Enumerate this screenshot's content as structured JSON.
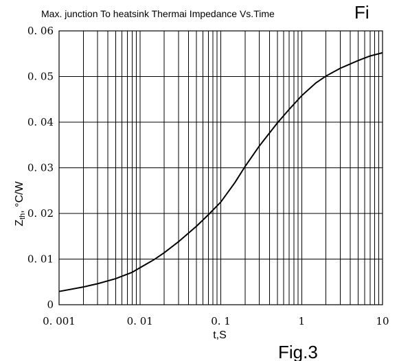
{
  "chart_data": {
    "type": "line",
    "title": "Max. junction To heatsink Thermai Impedance Vs.Time",
    "title_suffix": "Fi",
    "bottom_label": "Fig.3",
    "xlabel": "t,S",
    "ylabel_main": "Z",
    "ylabel_sub": "th",
    "ylabel_rest": ", °C/W",
    "x_scale": "log",
    "xlim": [
      0.001,
      10
    ],
    "ylim": [
      0,
      0.06
    ],
    "grid": true,
    "x_ticks": [
      {
        "value": 0.001,
        "label": "0. 001"
      },
      {
        "value": 0.01,
        "label": "0. 01"
      },
      {
        "value": 0.1,
        "label": "0. 1"
      },
      {
        "value": 1,
        "label": "1"
      },
      {
        "value": 10,
        "label": "10"
      }
    ],
    "y_ticks": [
      {
        "value": 0,
        "label": "0"
      },
      {
        "value": 0.01,
        "label": "0. 01"
      },
      {
        "value": 0.02,
        "label": "0. 02"
      },
      {
        "value": 0.03,
        "label": "0. 03"
      },
      {
        "value": 0.04,
        "label": "0. 04"
      },
      {
        "value": 0.05,
        "label": "0. 05"
      },
      {
        "value": 0.06,
        "label": "0. 06"
      }
    ],
    "series": [
      {
        "x": [
          0.001,
          0.002,
          0.003,
          0.005,
          0.008,
          0.01,
          0.015,
          0.02,
          0.03,
          0.05,
          0.07,
          0.1,
          0.15,
          0.2,
          0.3,
          0.5,
          0.7,
          1,
          1.5,
          2,
          3,
          5,
          7,
          10
        ],
        "y": [
          0.0029,
          0.0039,
          0.0046,
          0.0057,
          0.0071,
          0.0081,
          0.0099,
          0.0114,
          0.0138,
          0.0172,
          0.0197,
          0.0225,
          0.0268,
          0.0303,
          0.0348,
          0.0398,
          0.0428,
          0.0458,
          0.0486,
          0.0501,
          0.0518,
          0.0535,
          0.0545,
          0.0552
        ]
      }
    ]
  }
}
